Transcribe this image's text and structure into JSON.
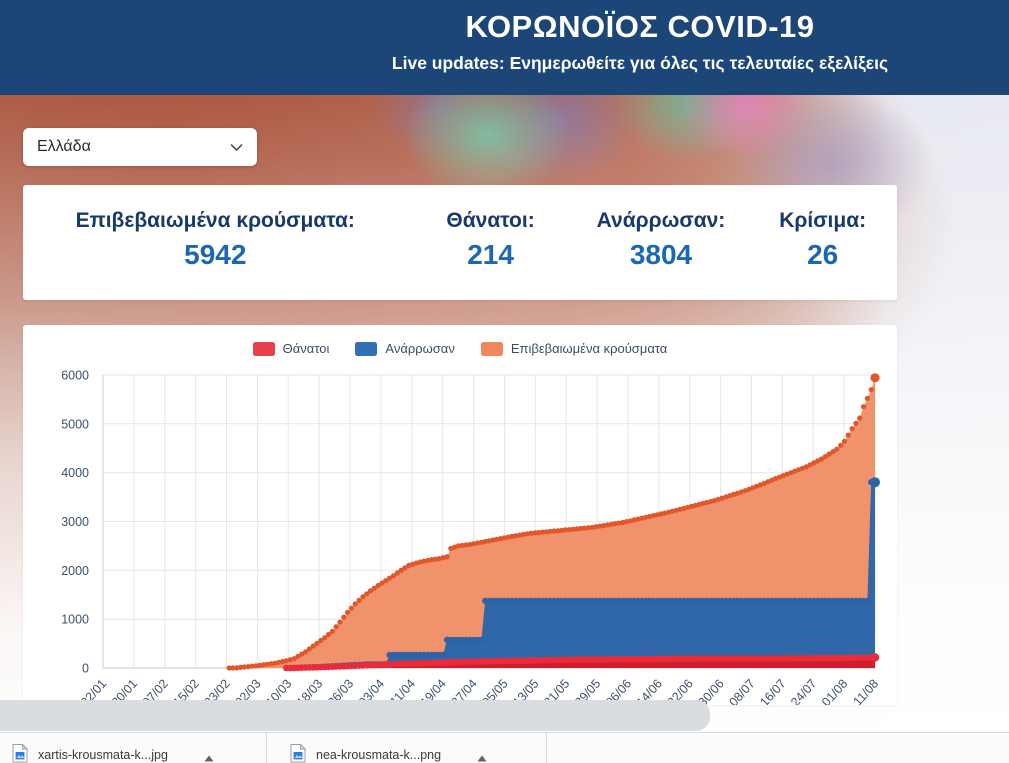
{
  "header": {
    "title": "ΚΟΡΩΝΟΪΟΣ COVID-19",
    "subtitle": "Live updates: Ενημερωθείτε για όλες τις τελευταίες εξελίξεις"
  },
  "country_select": {
    "value": "Ελλάδα"
  },
  "stats": [
    {
      "label": "Επιβεβαιωμένα κρούσματα:",
      "value": "5942"
    },
    {
      "label": "Θάνατοι:",
      "value": "214"
    },
    {
      "label": "Ανάρρωσαν:",
      "value": "3804"
    },
    {
      "label": "Κρίσιμα:",
      "value": "26"
    }
  ],
  "chart_data": {
    "type": "area",
    "title": "",
    "xlabel": "",
    "ylabel": "",
    "grid": true,
    "legend_position": "top-center",
    "legend": [
      {
        "name": "Θάνατοι",
        "color": "#e8414b"
      },
      {
        "name": "Ανάρρωσαν",
        "color": "#3070b3"
      },
      {
        "name": "Επιβεβαιωμένα κρούσματα",
        "color": "#f0875f"
      }
    ],
    "x_tick_labels": [
      "22/01",
      "30/01",
      "07/02",
      "15/02",
      "23/02",
      "02/03",
      "10/03",
      "18/03",
      "26/03",
      "03/04",
      "11/04",
      "19/04",
      "27/04",
      "05/05",
      "13/05",
      "21/05",
      "29/05",
      "06/06",
      "14/06",
      "22/06",
      "30/06",
      "08/07",
      "16/07",
      "24/07",
      "01/08",
      "11/08"
    ],
    "y_ticks": [
      0,
      1000,
      2000,
      3000,
      4000,
      5000,
      6000
    ],
    "ylim": [
      0,
      6000
    ],
    "x_days_range": [
      0,
      202
    ],
    "series": [
      {
        "id": "confirmed",
        "name": "Επιβεβαιωμένα κρούσματα",
        "fill_color": "#f0926b",
        "dot_color": "#e2572a",
        "dot_r": 2.6,
        "end_r": 4.6,
        "start_day": 33,
        "points": [
          [
            0,
            0
          ],
          [
            33,
            0
          ],
          [
            35,
            3
          ],
          [
            40,
            45
          ],
          [
            45,
            99
          ],
          [
            48,
            150
          ],
          [
            50,
            190
          ],
          [
            53,
            331
          ],
          [
            55,
            450
          ],
          [
            58,
            620
          ],
          [
            60,
            750
          ],
          [
            62,
            940
          ],
          [
            64,
            1140
          ],
          [
            66,
            1310
          ],
          [
            68,
            1460
          ],
          [
            70,
            1580
          ],
          [
            72,
            1690
          ],
          [
            74,
            1790
          ],
          [
            76,
            1890
          ],
          [
            78,
            2000
          ],
          [
            80,
            2100
          ],
          [
            82,
            2150
          ],
          [
            84,
            2190
          ],
          [
            86,
            2220
          ],
          [
            88,
            2240
          ],
          [
            90,
            2280
          ],
          [
            91,
            2450
          ],
          [
            93,
            2500
          ],
          [
            96,
            2530
          ],
          [
            100,
            2590
          ],
          [
            104,
            2650
          ],
          [
            108,
            2710
          ],
          [
            112,
            2760
          ],
          [
            116,
            2790
          ],
          [
            120,
            2820
          ],
          [
            124,
            2850
          ],
          [
            128,
            2880
          ],
          [
            132,
            2930
          ],
          [
            136,
            2980
          ],
          [
            140,
            3050
          ],
          [
            144,
            3120
          ],
          [
            148,
            3190
          ],
          [
            152,
            3270
          ],
          [
            156,
            3350
          ],
          [
            160,
            3430
          ],
          [
            164,
            3530
          ],
          [
            168,
            3630
          ],
          [
            172,
            3750
          ],
          [
            176,
            3880
          ],
          [
            180,
            4000
          ],
          [
            184,
            4120
          ],
          [
            188,
            4280
          ],
          [
            192,
            4480
          ],
          [
            194,
            4640
          ],
          [
            196,
            4900
          ],
          [
            198,
            5120
          ],
          [
            199,
            5350
          ],
          [
            200,
            5520
          ],
          [
            201,
            5700
          ],
          [
            202,
            5942
          ]
        ]
      },
      {
        "id": "recovered",
        "name": "Ανάρρωσαν",
        "fill_color": "#2f67a9",
        "dot_color": "#2a63a8",
        "dot_r": 3.1,
        "end_r": 5.0,
        "start_day": 50,
        "points": [
          [
            0,
            0
          ],
          [
            50,
            0
          ],
          [
            52,
            10
          ],
          [
            56,
            22
          ],
          [
            60,
            36
          ],
          [
            64,
            55
          ],
          [
            68,
            70
          ],
          [
            70,
            78
          ],
          [
            74,
            78
          ],
          [
            75,
            269
          ],
          [
            89,
            269
          ],
          [
            90,
            577
          ],
          [
            99,
            577
          ],
          [
            100,
            1374
          ],
          [
            200,
            1374
          ],
          [
            201,
            3804
          ],
          [
            202,
            3804
          ]
        ]
      },
      {
        "id": "deaths",
        "name": "Θάνατοι",
        "fill_color": "#cf1f2e",
        "dot_color": "#ea2b3a",
        "dot_r": 3.3,
        "end_r": 4.2,
        "start_day": 48,
        "points": [
          [
            0,
            0
          ],
          [
            49,
            0
          ],
          [
            50,
            3
          ],
          [
            54,
            10
          ],
          [
            58,
            20
          ],
          [
            62,
            32
          ],
          [
            66,
            45
          ],
          [
            70,
            59
          ],
          [
            74,
            73
          ],
          [
            78,
            86
          ],
          [
            82,
            96
          ],
          [
            86,
            105
          ],
          [
            90,
            116
          ],
          [
            94,
            125
          ],
          [
            98,
            134
          ],
          [
            102,
            141
          ],
          [
            106,
            147
          ],
          [
            110,
            151
          ],
          [
            114,
            157
          ],
          [
            118,
            163
          ],
          [
            122,
            169
          ],
          [
            126,
            173
          ],
          [
            130,
            176
          ],
          [
            134,
            178
          ],
          [
            138,
            181
          ],
          [
            142,
            184
          ],
          [
            146,
            187
          ],
          [
            150,
            190
          ],
          [
            154,
            191
          ],
          [
            158,
            192
          ],
          [
            162,
            192
          ],
          [
            166,
            193
          ],
          [
            170,
            193
          ],
          [
            174,
            194
          ],
          [
            178,
            196
          ],
          [
            182,
            199
          ],
          [
            186,
            201
          ],
          [
            190,
            203
          ],
          [
            194,
            206
          ],
          [
            198,
            210
          ],
          [
            202,
            214
          ]
        ]
      }
    ]
  },
  "downloads_bar": {
    "items": [
      {
        "filename": "xartis-krousmata-k...jpg",
        "icon": "image-file"
      },
      {
        "filename": "nea-krousmata-k...png",
        "icon": "image-file"
      }
    ]
  }
}
